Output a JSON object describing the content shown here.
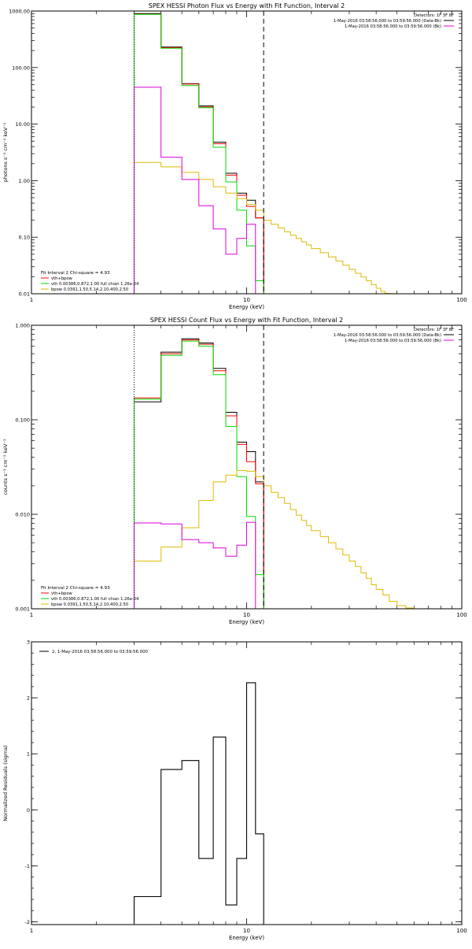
{
  "colors": {
    "data": "#000000",
    "total": "#ff0000",
    "vth": "#00dd00",
    "bpow": "#ddbb00",
    "bkg": "#dd00dd",
    "frame": "#000000"
  },
  "chart_data": [
    {
      "type": "line",
      "title": "SPEX HESSI Photon Flux vs Energy with Fit Function, Interval 2",
      "xlabel": "Energy (keV)",
      "ylabel": "photons s⁻¹ cm⁻² keV⁻¹",
      "xscale": "log",
      "yscale": "log",
      "xlim": [
        1,
        100
      ],
      "ylim": [
        0.01,
        1000
      ],
      "xticks": [
        {
          "value": 1,
          "label": "1"
        },
        {
          "value": 10,
          "label": "10"
        },
        {
          "value": 100,
          "label": "100"
        }
      ],
      "yticks": [
        {
          "value": 0.01,
          "label": "0.01"
        },
        {
          "value": 0.1,
          "label": "0.10"
        },
        {
          "value": 1,
          "label": "1.00"
        },
        {
          "value": 10,
          "label": "10.00"
        },
        {
          "value": 100,
          "label": "100.00"
        },
        {
          "value": 1000,
          "label": "1000.00"
        }
      ],
      "vlines": [
        {
          "x": 3.0,
          "style": "dotted",
          "color": "#000000"
        },
        {
          "x": 12.0,
          "style": "dashed",
          "color": "#000000"
        }
      ],
      "legend_topright": [
        {
          "text": "Detectors: 1F 3F 8F",
          "color": "#000000",
          "line": false
        },
        {
          "text": "1-May-2016 03:58:56.000 to 03:59:56.000 (Data-Bk)",
          "color": "#000000",
          "line": true
        },
        {
          "text": "1-May-2016 03:58:56.000 to 03:59:56.000 (Bk)",
          "color": "#dd00dd",
          "line": true
        }
      ],
      "legend_bottomleft": [
        {
          "text": "Fit Interval 2  Chi-square = 4.93",
          "color": "#000000",
          "line": false
        },
        {
          "text": "vth+bpow",
          "color": "#ff0000",
          "line": true
        },
        {
          "text": "vth 0.00386,0.872,1.00  full chian 1.26e-04",
          "color": "#00dd00",
          "line": true
        },
        {
          "text": "bpow 0.0391,1.50,5.14,2.10,400,2.50",
          "color": "#ddbb00",
          "line": true
        }
      ],
      "series": [
        {
          "kind": "data",
          "color": "#000000",
          "edges": [
            3.0,
            4.0,
            5.0,
            6.0,
            7.0,
            8.0,
            9.0,
            10.0,
            11.0,
            12.0
          ],
          "values": [
            900,
            230,
            52,
            21,
            4.8,
            1.35,
            0.6,
            0.45,
            0.22
          ]
        },
        {
          "kind": "total",
          "color": "#ff0000",
          "edges": [
            3.0,
            4.0,
            5.0,
            6.0,
            7.0,
            8.0,
            9.0,
            10.0,
            11.0,
            12.0
          ],
          "values": [
            880,
            225,
            51,
            20,
            4.5,
            1.25,
            0.55,
            0.35,
            0.22
          ]
        },
        {
          "kind": "vth",
          "color": "#00dd00",
          "edges": [
            3.0,
            4.0,
            5.0,
            6.0,
            7.0,
            8.0,
            9.0,
            10.0,
            11.0,
            12.0
          ],
          "values": [
            870,
            220,
            48,
            19.5,
            3.9,
            0.95,
            0.3,
            0.07,
            0.017
          ]
        },
        {
          "kind": "bpow",
          "color": "#ddbb00",
          "edges": [
            3.0,
            4.0,
            5.0,
            6.0,
            7.0,
            8.0,
            9.0,
            10.0,
            11.0,
            12.0,
            13.0,
            14.0,
            15.0,
            16.0,
            17.0,
            18.0,
            19.0,
            20.0,
            22.0,
            24.0,
            26.0,
            28.0,
            30.0,
            32.0,
            34.0,
            36.0,
            38.0,
            40.0,
            42.0,
            44.0,
            46.0,
            48.0,
            50.0
          ],
          "values": [
            2.1,
            1.75,
            1.4,
            1.05,
            0.78,
            0.6,
            0.48,
            0.38,
            0.3,
            0.2,
            0.17,
            0.145,
            0.125,
            0.108,
            0.095,
            0.083,
            0.073,
            0.063,
            0.053,
            0.045,
            0.038,
            0.032,
            0.027,
            0.023,
            0.0198,
            0.017,
            0.0145,
            0.0125,
            0.011,
            0.0102,
            0.0101,
            0.0101
          ]
        },
        {
          "kind": "bkg",
          "color": "#dd00dd",
          "edges": [
            3.0,
            4.0,
            5.0,
            6.0,
            7.0,
            8.0,
            9.0,
            10.0,
            11.0
          ],
          "values": [
            45,
            2.6,
            1.05,
            0.36,
            0.14,
            0.05,
            0.095,
            0.17
          ]
        }
      ]
    },
    {
      "type": "line",
      "title": "SPEX HESSI Count Flux vs Energy with Fit Function, Interval 2",
      "xlabel": "Energy (keV)",
      "ylabel": "counts s⁻¹ cm⁻² keV⁻¹",
      "xscale": "log",
      "yscale": "log",
      "xlim": [
        1,
        100
      ],
      "ylim": [
        0.001,
        1
      ],
      "xticks": [
        {
          "value": 1,
          "label": "1"
        },
        {
          "value": 10,
          "label": "10"
        },
        {
          "value": 100,
          "label": "100"
        }
      ],
      "yticks": [
        {
          "value": 0.001,
          "label": "0.001"
        },
        {
          "value": 0.01,
          "label": "0.010"
        },
        {
          "value": 0.1,
          "label": "0.100"
        },
        {
          "value": 1,
          "label": "1.000"
        }
      ],
      "vlines": [
        {
          "x": 3.0,
          "style": "dotted",
          "color": "#000000"
        },
        {
          "x": 12.0,
          "style": "dashed",
          "color": "#000000"
        }
      ],
      "legend_topright": [
        {
          "text": "Detectors: 1F 3F 8F",
          "color": "#000000",
          "line": false
        },
        {
          "text": "1-May-2016 03:58:56.000 to 03:59:56.000 (Data-Bk)",
          "color": "#000000",
          "line": true
        },
        {
          "text": "1-May-2016 03:58:56.000 to 03:59:56.000 (Bk)",
          "color": "#dd00dd",
          "line": true
        }
      ],
      "legend_bottomleft": [
        {
          "text": "Fit Interval 2  Chi-square = 4.93",
          "color": "#000000",
          "line": false
        },
        {
          "text": "vth+bpow",
          "color": "#ff0000",
          "line": true
        },
        {
          "text": "vth 0.00386,0.872,1.00  full chian 1.26e-04",
          "color": "#00dd00",
          "line": true
        },
        {
          "text": "bpow 0.0391,1.50,5.14,2.10,400,2.50",
          "color": "#ddbb00",
          "line": true
        }
      ],
      "series": [
        {
          "kind": "data",
          "color": "#000000",
          "edges": [
            3.0,
            4.0,
            5.0,
            6.0,
            7.0,
            8.0,
            9.0,
            10.0,
            11.0,
            12.0
          ],
          "values": [
            0.155,
            0.52,
            0.72,
            0.65,
            0.35,
            0.12,
            0.058,
            0.046,
            0.022
          ]
        },
        {
          "kind": "total",
          "color": "#ff0000",
          "edges": [
            3.0,
            4.0,
            5.0,
            6.0,
            7.0,
            8.0,
            9.0,
            10.0,
            11.0,
            12.0
          ],
          "values": [
            0.17,
            0.5,
            0.7,
            0.63,
            0.33,
            0.11,
            0.055,
            0.036,
            0.021
          ]
        },
        {
          "kind": "vth",
          "color": "#00dd00",
          "edges": [
            3.0,
            4.0,
            5.0,
            6.0,
            7.0,
            8.0,
            9.0,
            10.0,
            11.0,
            12.0
          ],
          "values": [
            0.165,
            0.48,
            0.68,
            0.6,
            0.3,
            0.085,
            0.025,
            0.0095,
            0.0023
          ]
        },
        {
          "kind": "bpow",
          "color": "#ddbb00",
          "edges": [
            3.0,
            4.0,
            5.0,
            6.0,
            7.0,
            8.0,
            9.0,
            10.0,
            11.0,
            12.0,
            13.0,
            14.0,
            15.0,
            16.0,
            17.0,
            18.0,
            19.0,
            20.0,
            22.0,
            24.0,
            26.0,
            28.0,
            30.0,
            32.0,
            34.0,
            36.0,
            38.0,
            40.0,
            43.0,
            46.0,
            50.0,
            55.0,
            60.0,
            65.0,
            70.0
          ],
          "values": [
            0.0032,
            0.0045,
            0.0072,
            0.014,
            0.022,
            0.026,
            0.029,
            0.0285,
            0.025,
            0.02,
            0.017,
            0.015,
            0.013,
            0.0112,
            0.0098,
            0.0086,
            0.0076,
            0.0067,
            0.0058,
            0.005,
            0.0043,
            0.0037,
            0.0032,
            0.0028,
            0.0024,
            0.0021,
            0.0018,
            0.0016,
            0.0014,
            0.0012,
            0.00108,
            0.00102,
            0.001,
            0.001
          ]
        },
        {
          "kind": "bkg",
          "color": "#dd00dd",
          "edges": [
            3.0,
            4.0,
            5.0,
            6.0,
            7.0,
            8.0,
            9.0,
            10.0,
            11.0
          ],
          "values": [
            0.0081,
            0.0079,
            0.0054,
            0.005,
            0.0044,
            0.0036,
            0.0047,
            0.0082
          ]
        }
      ]
    },
    {
      "type": "line",
      "title": "",
      "xlabel": "Energy (keV)",
      "ylabel": "Normalized Residuals (sigma)",
      "xscale": "log",
      "yscale": "linear",
      "xlim": [
        1,
        100
      ],
      "ylim": [
        -2.05,
        3
      ],
      "xticks": [
        {
          "value": 1,
          "label": "1"
        },
        {
          "value": 10,
          "label": "10"
        },
        {
          "value": 100,
          "label": "100"
        }
      ],
      "yticks": [
        {
          "value": -2,
          "label": "-2"
        },
        {
          "value": -1,
          "label": "-1"
        },
        {
          "value": 0,
          "label": "0"
        },
        {
          "value": 1,
          "label": "1"
        },
        {
          "value": 2,
          "label": "2"
        },
        {
          "value": 3,
          "label": "3"
        }
      ],
      "vlines": [],
      "legend_topleft": [
        {
          "text": "2,  1-May-2016 03:58:56.000 to 03:59:56.000",
          "color": "#000000",
          "line": true
        }
      ],
      "series": [
        {
          "kind": "residual",
          "color": "#000000",
          "edges": [
            3.0,
            4.0,
            5.0,
            6.0,
            7.0,
            8.0,
            9.0,
            10.0,
            11.0,
            12.0
          ],
          "values": [
            -1.55,
            0.72,
            0.88,
            -0.87,
            1.3,
            -1.7,
            -0.87,
            2.27,
            -0.43
          ]
        }
      ]
    }
  ]
}
